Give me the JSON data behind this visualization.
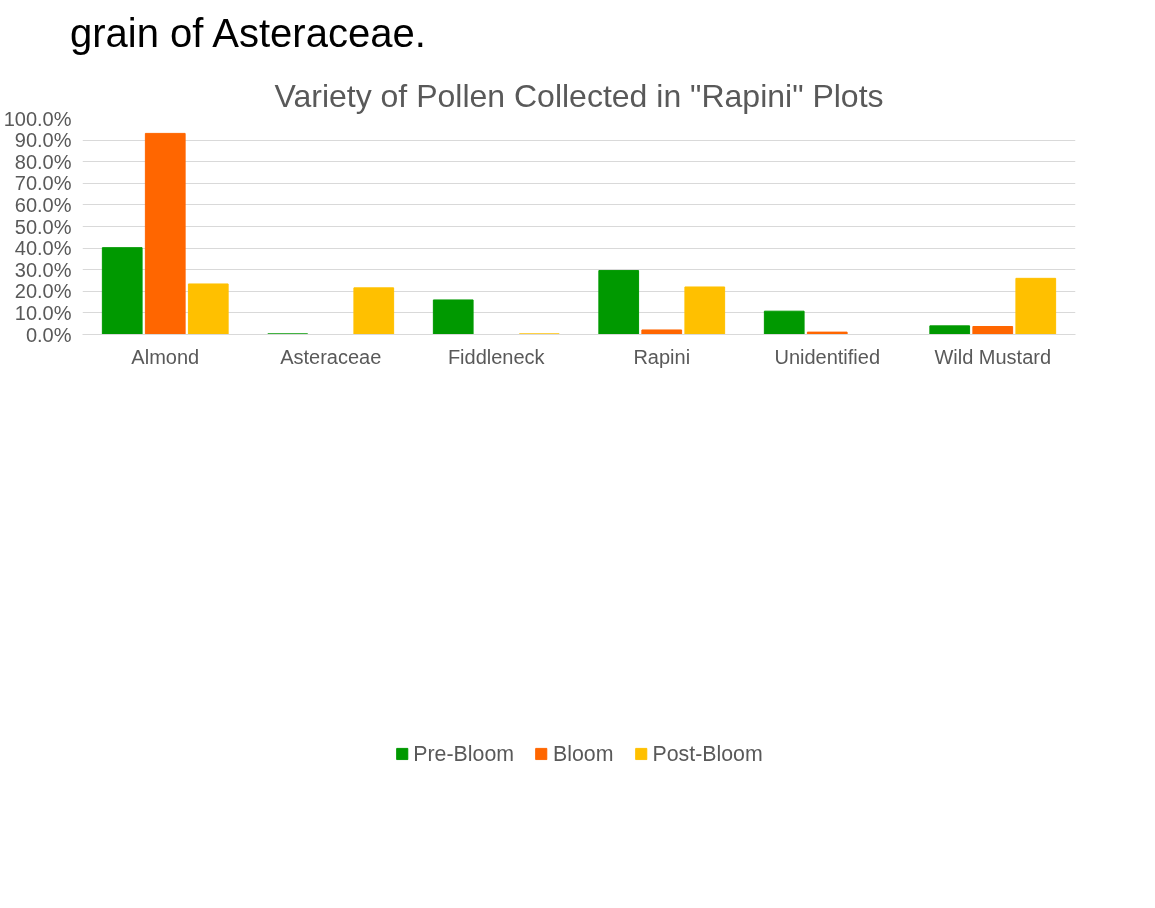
{
  "chart_data": {
    "type": "bar",
    "title": "Variety of Pollen Collected in \"Rapini\" Plots",
    "annotations": [
      "grain of Asteraceae."
    ],
    "categories": [
      "Almond",
      "Asteraceae",
      "Fiddleneck",
      "Rapini",
      "Unidentified",
      "Wild Mustard"
    ],
    "series": [
      {
        "name": "Pre-Bloom",
        "color": "#009900",
        "values": [
          40.2,
          0.3,
          16.0,
          29.6,
          10.8,
          4.0
        ]
      },
      {
        "name": "Bloom",
        "color": "#ff6600",
        "values": [
          93.1,
          0,
          0,
          2.1,
          1.1,
          3.7
        ]
      },
      {
        "name": "Post-Bloom",
        "color": "#ffc000",
        "values": [
          23.4,
          21.6,
          0.3,
          22.0,
          0,
          26.0
        ]
      }
    ],
    "ylim": [
      0,
      100
    ],
    "yticks": [
      {
        "value": 0,
        "label": "0.0%"
      },
      {
        "value": 10,
        "label": "10.0%"
      },
      {
        "value": 20,
        "label": "20.0%"
      },
      {
        "value": 30,
        "label": "30.0%"
      },
      {
        "value": 40,
        "label": "40.0%"
      },
      {
        "value": 50,
        "label": "50.0%"
      },
      {
        "value": 60,
        "label": "60.0%"
      },
      {
        "value": 70,
        "label": "70.0%"
      },
      {
        "value": 80,
        "label": "80.0%"
      },
      {
        "value": 90,
        "label": "90.0%"
      },
      {
        "value": 100,
        "label": "100.0%"
      }
    ],
    "grid": "y",
    "legend": "bottom"
  }
}
